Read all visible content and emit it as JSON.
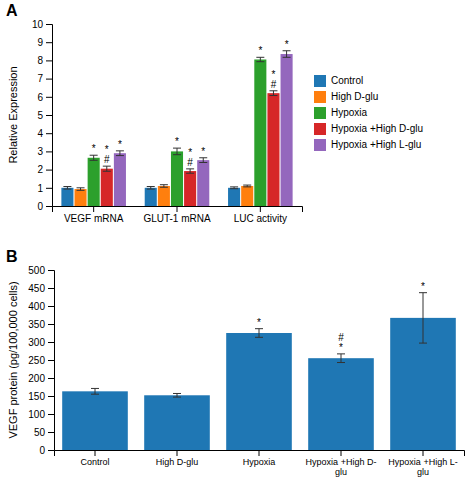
{
  "chart_data": [
    {
      "type": "bar",
      "title": "A",
      "y_label": "Relative Expression",
      "categories": [
        "VEGF mRNA",
        "GLUT-1 mRNA",
        "LUC activity"
      ],
      "series": [
        {
          "name": "Control",
          "values": [
            1.0,
            1.0,
            1.0
          ],
          "errors": [
            0.07,
            0.07,
            0.05
          ]
        },
        {
          "name": "High D-glu",
          "values": [
            0.93,
            1.1,
            1.1
          ],
          "errors": [
            0.07,
            0.07,
            0.05
          ]
        },
        {
          "name": "Hypoxia",
          "values": [
            2.65,
            3.0,
            8.05
          ],
          "errors": [
            0.14,
            0.18,
            0.12
          ]
        },
        {
          "name": "Hypoxia +High D-glu",
          "values": [
            2.05,
            1.92,
            6.2
          ],
          "errors": [
            0.14,
            0.12,
            0.13
          ]
        },
        {
          "name": "Hypoxia +High L-glu",
          "values": [
            2.9,
            2.52,
            8.35
          ],
          "errors": [
            0.13,
            0.13,
            0.18
          ]
        }
      ],
      "annotations": [
        {
          "text": "*",
          "series": "Hypoxia",
          "category": "VEGF mRNA"
        },
        {
          "text": "#",
          "series": "Hypoxia +High D-glu",
          "category": "VEGF mRNA"
        },
        {
          "text": "*",
          "series": "Hypoxia +High D-glu",
          "category": "VEGF mRNA"
        },
        {
          "text": "*",
          "series": "Hypoxia +High L-glu",
          "category": "VEGF mRNA"
        },
        {
          "text": "*",
          "series": "Hypoxia",
          "category": "GLUT-1 mRNA"
        },
        {
          "text": "#",
          "series": "Hypoxia +High D-glu",
          "category": "GLUT-1 mRNA"
        },
        {
          "text": "*",
          "series": "Hypoxia +High D-glu",
          "category": "GLUT-1 mRNA"
        },
        {
          "text": "*",
          "series": "Hypoxia +High L-glu",
          "category": "GLUT-1 mRNA"
        },
        {
          "text": "*",
          "series": "Hypoxia",
          "category": "LUC activity"
        },
        {
          "text": "#",
          "series": "Hypoxia +High D-glu",
          "category": "LUC activity"
        },
        {
          "text": "*",
          "series": "Hypoxia +High D-glu",
          "category": "LUC activity"
        },
        {
          "text": "*",
          "series": "Hypoxia +High L-glu",
          "category": "LUC activity"
        }
      ],
      "ylim": [
        0,
        10
      ],
      "yticks": [
        0,
        1,
        2,
        3,
        4,
        5,
        6,
        7,
        8,
        9,
        10
      ],
      "grid": false,
      "legend": "right"
    },
    {
      "type": "bar",
      "title": "B",
      "y_label": "VEGF protein (pg/100,000 cells)",
      "categories": [
        "Control",
        "High D-glu",
        "Hypoxia",
        "Hypoxia +High D-\nglu",
        "Hypoxia +High L-\nglu"
      ],
      "values": [
        163,
        152,
        325,
        255,
        367
      ],
      "errors": [
        8,
        5,
        12,
        12,
        70
      ],
      "annotations": [
        {
          "text": "*",
          "category": "Hypoxia"
        },
        {
          "text": "*",
          "category": "Hypoxia +High D-\nglu"
        },
        {
          "text": "#",
          "category": "Hypoxia +High D-\nglu"
        },
        {
          "text": "*",
          "category": "Hypoxia +High L-\nglu"
        }
      ],
      "ylim": [
        0,
        500
      ],
      "yticks": [
        0,
        50,
        100,
        150,
        200,
        250,
        300,
        350,
        400,
        450,
        500
      ],
      "grid": false
    }
  ]
}
